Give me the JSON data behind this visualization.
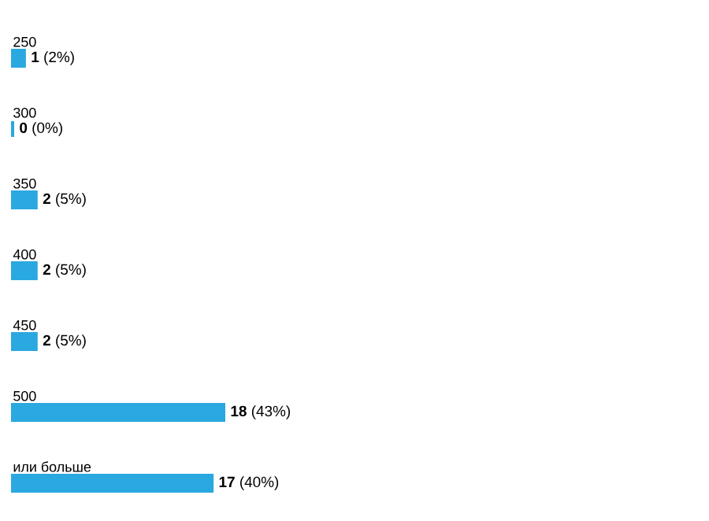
{
  "chart_data": {
    "type": "bar",
    "orientation": "horizontal",
    "categories": [
      "250",
      "300",
      "350",
      "400",
      "450",
      "500",
      "или больше"
    ],
    "values": [
      1,
      0,
      2,
      2,
      2,
      18,
      17
    ],
    "color": "#2aa8e0",
    "value_labels": [
      "**1** (2%)",
      "**0** (0%)",
      "**2** (5%)",
      "**2** (5%)",
      "**2** (5%)",
      "**18** (43%)",
      "**17** (40%)"
    ]
  }
}
